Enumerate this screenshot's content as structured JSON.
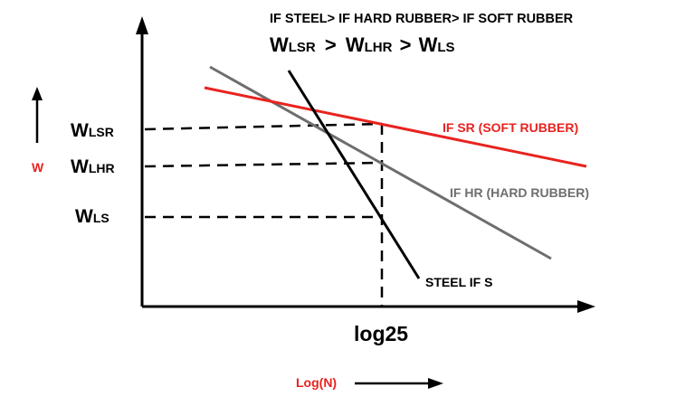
{
  "header": {
    "condition": "IF STEEL> IF HARD RUBBER> IF SOFT RUBBER",
    "relation": {
      "w1": "W",
      "s1": "LSR",
      "op1": ">",
      "w2": "W",
      "s2": "LHR",
      "op2": ">",
      "w3": "W",
      "s3": "LS"
    }
  },
  "y_axis": {
    "symbol": "W",
    "ticks": [
      {
        "main": "W",
        "sub": "LSR"
      },
      {
        "main": "W",
        "sub": "LHR"
      },
      {
        "main": "W",
        "sub": "LS"
      }
    ]
  },
  "x_axis": {
    "marker_label": "log25",
    "label": "Log(N)"
  },
  "curves": {
    "soft_rubber": {
      "label": "IF SR (SOFT RUBBER)",
      "color": "#e8231f"
    },
    "hard_rubber": {
      "label": "IF HR (HARD RUBBER)",
      "color": "#6e6e6e"
    },
    "steel": {
      "label": "STEEL  IF S",
      "color": "#000000"
    }
  },
  "colors": {
    "axis": "#000000",
    "accent_red": "#e8231f",
    "gray": "#6e6e6e"
  }
}
